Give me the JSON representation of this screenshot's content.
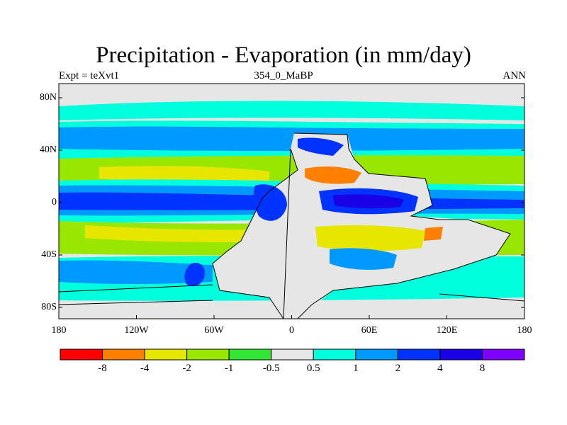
{
  "title": "Precipitation - Evaporation (in mm/day)",
  "subtitle_left": "Expt = teXvt1",
  "subtitle_center": "354_0_MaBP",
  "subtitle_right": "ANN",
  "y_labels": [
    "80N",
    "40N",
    "0",
    "40S",
    "80S"
  ],
  "x_labels": [
    "180",
    "120W",
    "60W",
    "0",
    "60E",
    "120E",
    "180"
  ],
  "colorbar": {
    "colors": [
      "#ff0000",
      "#ff8000",
      "#e6e600",
      "#99e600",
      "#33e633",
      "#e6e6e6",
      "#00ffdd",
      "#0099ff",
      "#0033ff",
      "#1a00e6",
      "#8000ff"
    ],
    "labels": [
      "-8",
      "-4",
      "-2",
      "-1",
      "-0.5",
      "0.5",
      "1",
      "2",
      "4",
      "8"
    ]
  }
}
